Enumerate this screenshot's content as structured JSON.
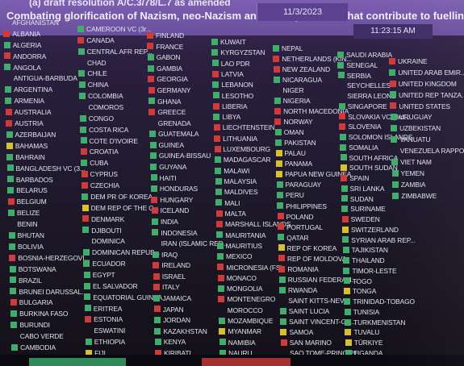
{
  "header": {
    "resolution": "(a) draft resolution A/C.3/78/L.7 as amended",
    "topic": "Combating glorification of Nazism, neo-Nazism and other practices that contribute to fuelling contemporary forms of",
    "date": "11/3/2023",
    "time": "11:23:15 AM"
  },
  "columns": [
    [
      {
        "name": "AFGHANISTAN",
        "vote": "none"
      },
      {
        "name": "ALBANIA",
        "vote": "no"
      },
      {
        "name": "ALGERIA",
        "vote": "yes"
      },
      {
        "name": "ANDORRA",
        "vote": "no"
      },
      {
        "name": "ANGOLA",
        "vote": "yes"
      },
      {
        "name": "ANTIGUA-BARBUDA",
        "vote": "none"
      },
      {
        "name": "ARGENTINA",
        "vote": "yes"
      },
      {
        "name": "ARMENIA",
        "vote": "yes"
      },
      {
        "name": "AUSTRALIA",
        "vote": "no"
      },
      {
        "name": "AUSTRIA",
        "vote": "no"
      },
      {
        "name": "AZERBAIJAN",
        "vote": "yes"
      },
      {
        "name": "BAHAMAS",
        "vote": "abs"
      },
      {
        "name": "BAHRAIN",
        "vote": "yes"
      },
      {
        "name": "BANGLADESH VC (3...",
        "vote": "yes"
      },
      {
        "name": "BARBADOS",
        "vote": "yes"
      },
      {
        "name": "BELARUS",
        "vote": "yes"
      },
      {
        "name": "BELGIUM",
        "vote": "no"
      },
      {
        "name": "BELIZE",
        "vote": "yes"
      },
      {
        "name": "BENIN",
        "vote": "none"
      },
      {
        "name": "BHUTAN",
        "vote": "yes"
      },
      {
        "name": "BOLIVIA",
        "vote": "yes"
      },
      {
        "name": "BOSNIA-HERZEGOVI...",
        "vote": "no"
      },
      {
        "name": "BOTSWANA",
        "vote": "yes"
      },
      {
        "name": "BRAZIL",
        "vote": "yes"
      },
      {
        "name": "BRUNEI DARUSSAL...",
        "vote": "yes"
      },
      {
        "name": "BULGARIA",
        "vote": "no"
      },
      {
        "name": "BURKINA FASO",
        "vote": "yes"
      },
      {
        "name": "BURUNDI",
        "vote": "yes"
      },
      {
        "name": "CABO VERDE",
        "vote": "none"
      },
      {
        "name": "CAMBODIA",
        "vote": "yes"
      }
    ],
    [
      {
        "name": "CAMEROON VC (3r...",
        "vote": "yes"
      },
      {
        "name": "CANADA",
        "vote": "no"
      },
      {
        "name": "CENTRAL AFR REP...",
        "vote": "yes"
      },
      {
        "name": "CHAD",
        "vote": "none"
      },
      {
        "name": "CHILE",
        "vote": "yes"
      },
      {
        "name": "CHINA",
        "vote": "yes"
      },
      {
        "name": "COLOMBIA",
        "vote": "yes"
      },
      {
        "name": "COMOROS",
        "vote": "none"
      },
      {
        "name": "CONGO",
        "vote": "yes"
      },
      {
        "name": "COSTA RICA",
        "vote": "yes"
      },
      {
        "name": "COTE D'IVOIRE",
        "vote": "yes"
      },
      {
        "name": "CROATIA",
        "vote": "no"
      },
      {
        "name": "CUBA",
        "vote": "yes"
      },
      {
        "name": "CYPRUS",
        "vote": "no"
      },
      {
        "name": "CZECHIA",
        "vote": "no"
      },
      {
        "name": "DEM PR OF KOREA",
        "vote": "yes"
      },
      {
        "name": "DEM REP OF THE C...",
        "vote": "abs"
      },
      {
        "name": "DENMARK",
        "vote": "no"
      },
      {
        "name": "DJIBOUTI",
        "vote": "yes"
      },
      {
        "name": "DOMINICA",
        "vote": "none"
      },
      {
        "name": "DOMINICAN REPUB...",
        "vote": "yes"
      },
      {
        "name": "ECUADOR",
        "vote": "yes"
      },
      {
        "name": "EGYPT",
        "vote": "yes"
      },
      {
        "name": "EL SALVADOR",
        "vote": "yes"
      },
      {
        "name": "EQUATORIAL GUINEA",
        "vote": "yes"
      },
      {
        "name": "ERITREA",
        "vote": "yes"
      },
      {
        "name": "ESTONIA",
        "vote": "no"
      },
      {
        "name": "ESWATINI",
        "vote": "none"
      },
      {
        "name": "ETHIOPIA",
        "vote": "yes"
      },
      {
        "name": "FIJI",
        "vote": "abs"
      }
    ],
    [
      {
        "name": "FINLAND",
        "vote": "no"
      },
      {
        "name": "FRANCE",
        "vote": "no"
      },
      {
        "name": "GABON",
        "vote": "yes"
      },
      {
        "name": "GAMBIA",
        "vote": "yes"
      },
      {
        "name": "GEORGIA",
        "vote": "no"
      },
      {
        "name": "GERMANY",
        "vote": "no"
      },
      {
        "name": "GHANA",
        "vote": "yes"
      },
      {
        "name": "GREECE",
        "vote": "no"
      },
      {
        "name": "GRENADA",
        "vote": "none"
      },
      {
        "name": "GUATEMALA",
        "vote": "yes"
      },
      {
        "name": "GUINEA",
        "vote": "yes"
      },
      {
        "name": "GUINEA-BISSAU",
        "vote": "yes"
      },
      {
        "name": "GUYANA",
        "vote": "yes"
      },
      {
        "name": "HAITI",
        "vote": "yes"
      },
      {
        "name": "HONDURAS",
        "vote": "yes"
      },
      {
        "name": "HUNGARY",
        "vote": "no"
      },
      {
        "name": "ICELAND",
        "vote": "no"
      },
      {
        "name": "INDIA",
        "vote": "yes"
      },
      {
        "name": "INDONESIA",
        "vote": "yes"
      },
      {
        "name": "IRAN (ISLAMIC REP...",
        "vote": "none"
      },
      {
        "name": "IRAQ",
        "vote": "yes"
      },
      {
        "name": "IRELAND",
        "vote": "no"
      },
      {
        "name": "ISRAEL",
        "vote": "no"
      },
      {
        "name": "ITALY",
        "vote": "no"
      },
      {
        "name": "JAMAICA",
        "vote": "yes"
      },
      {
        "name": "JAPAN",
        "vote": "no"
      },
      {
        "name": "JORDAN",
        "vote": "yes"
      },
      {
        "name": "KAZAKHSTAN",
        "vote": "yes"
      },
      {
        "name": "KENYA",
        "vote": "yes"
      },
      {
        "name": "KIRIBATI",
        "vote": "no"
      }
    ],
    [
      {
        "name": "KUWAIT",
        "vote": "yes"
      },
      {
        "name": "KYRGYZSTAN",
        "vote": "yes"
      },
      {
        "name": "LAO PDR",
        "vote": "yes"
      },
      {
        "name": "LATVIA",
        "vote": "no"
      },
      {
        "name": "LEBANON",
        "vote": "yes"
      },
      {
        "name": "LESOTHO",
        "vote": "yes"
      },
      {
        "name": "LIBERIA",
        "vote": "no"
      },
      {
        "name": "LIBYA",
        "vote": "yes"
      },
      {
        "name": "LIECHTENSTEIN",
        "vote": "no"
      },
      {
        "name": "LITHUANIA",
        "vote": "no"
      },
      {
        "name": "LUXEMBOURG",
        "vote": "no"
      },
      {
        "name": "MADAGASCAR",
        "vote": "yes"
      },
      {
        "name": "MALAWI",
        "vote": "yes"
      },
      {
        "name": "MALAYSIA",
        "vote": "yes"
      },
      {
        "name": "MALDIVES",
        "vote": "yes"
      },
      {
        "name": "MALI",
        "vote": "yes"
      },
      {
        "name": "MALTA",
        "vote": "no"
      },
      {
        "name": "MARSHALL ISLANDS",
        "vote": "no"
      },
      {
        "name": "MAURITANIA",
        "vote": "yes"
      },
      {
        "name": "MAURITIUS",
        "vote": "yes"
      },
      {
        "name": "MEXICO",
        "vote": "yes"
      },
      {
        "name": "MICRONESIA (FS)",
        "vote": "no"
      },
      {
        "name": "MONACO",
        "vote": "no"
      },
      {
        "name": "MONGOLIA",
        "vote": "yes"
      },
      {
        "name": "MONTENEGRO",
        "vote": "no"
      },
      {
        "name": "MOROCCO",
        "vote": "none"
      },
      {
        "name": "MOZAMBIQUE",
        "vote": "yes"
      },
      {
        "name": "MYANMAR",
        "vote": "abs"
      },
      {
        "name": "NAMIBIA",
        "vote": "yes"
      },
      {
        "name": "NAURU",
        "vote": "yes"
      }
    ],
    [
      {
        "name": "NEPAL",
        "vote": "yes"
      },
      {
        "name": "NETHERLANDS (KIN...",
        "vote": "no"
      },
      {
        "name": "NEW ZEALAND",
        "vote": "no"
      },
      {
        "name": "NICARAGUA",
        "vote": "yes"
      },
      {
        "name": "NIGER",
        "vote": "none"
      },
      {
        "name": "NIGERIA",
        "vote": "yes"
      },
      {
        "name": "NORTH MACEDONIA",
        "vote": "no"
      },
      {
        "name": "NORWAY",
        "vote": "no"
      },
      {
        "name": "OMAN",
        "vote": "yes"
      },
      {
        "name": "PAKISTAN",
        "vote": "yes"
      },
      {
        "name": "PALAU",
        "vote": "abs"
      },
      {
        "name": "PANAMA",
        "vote": "abs"
      },
      {
        "name": "PAPUA NEW GUINEA",
        "vote": "abs"
      },
      {
        "name": "PARAGUAY",
        "vote": "yes"
      },
      {
        "name": "PERU",
        "vote": "yes"
      },
      {
        "name": "PHILIPPINES",
        "vote": "yes"
      },
      {
        "name": "POLAND",
        "vote": "no"
      },
      {
        "name": "PORTUGAL",
        "vote": "no"
      },
      {
        "name": "QATAR",
        "vote": "yes"
      },
      {
        "name": "REP OF KOREA",
        "vote": "abs"
      },
      {
        "name": "REP OF MOLDOVA",
        "vote": "no"
      },
      {
        "name": "ROMANIA",
        "vote": "no"
      },
      {
        "name": "RUSSIAN FEDERATI...",
        "vote": "yes"
      },
      {
        "name": "RWANDA",
        "vote": "yes"
      },
      {
        "name": "SAINT KITTS-NEVIS",
        "vote": "none"
      },
      {
        "name": "SAINT LUCIA",
        "vote": "yes"
      },
      {
        "name": "SAINT VINCENT-GR...",
        "vote": "yes"
      },
      {
        "name": "SAMOA",
        "vote": "abs"
      },
      {
        "name": "SAN MARINO",
        "vote": "no"
      },
      {
        "name": "SAO TOME-PRINCIPE",
        "vote": "none"
      }
    ],
    [
      {
        "name": "SAUDI ARABIA",
        "vote": "yes"
      },
      {
        "name": "SENEGAL",
        "vote": "yes"
      },
      {
        "name": "SERBIA",
        "vote": "yes"
      },
      {
        "name": "SEYCHELLES",
        "vote": "none"
      },
      {
        "name": "SIERRA LEONE",
        "vote": "none"
      },
      {
        "name": "SINGAPORE",
        "vote": "yes"
      },
      {
        "name": "SLOVAKIA VC (3rd...",
        "vote": "no"
      },
      {
        "name": "SLOVENIA",
        "vote": "no"
      },
      {
        "name": "SOLOMON ISLANDS",
        "vote": "yes"
      },
      {
        "name": "SOMALIA",
        "vote": "yes"
      },
      {
        "name": "SOUTH AFRICA",
        "vote": "yes"
      },
      {
        "name": "SOUTH SUDAN",
        "vote": "abs"
      },
      {
        "name": "SPAIN",
        "vote": "no"
      },
      {
        "name": "SRI LANKA",
        "vote": "yes"
      },
      {
        "name": "SUDAN",
        "vote": "yes"
      },
      {
        "name": "SURINAME",
        "vote": "yes"
      },
      {
        "name": "SWEDEN",
        "vote": "no"
      },
      {
        "name": "SWITZERLAND",
        "vote": "abs"
      },
      {
        "name": "SYRIAN ARAB REP...",
        "vote": "yes"
      },
      {
        "name": "TAJIKISTAN",
        "vote": "yes"
      },
      {
        "name": "THAILAND",
        "vote": "yes"
      },
      {
        "name": "TIMOR-LESTE",
        "vote": "yes"
      },
      {
        "name": "TOGO",
        "vote": "yes"
      },
      {
        "name": "TONGA",
        "vote": "abs"
      },
      {
        "name": "TRINIDAD-TOBAGO",
        "vote": "yes"
      },
      {
        "name": "TUNISIA",
        "vote": "yes"
      },
      {
        "name": "TURKMENISTAN",
        "vote": "yes"
      },
      {
        "name": "TUVALU",
        "vote": "abs"
      },
      {
        "name": "TÜRKIYE",
        "vote": "abs"
      },
      {
        "name": "UGANDA",
        "vote": "yes"
      }
    ],
    [
      {
        "name": "UKRAINE",
        "vote": "no"
      },
      {
        "name": "UNITED ARAB EMIR...",
        "vote": "yes"
      },
      {
        "name": "UNITED KINGDOM",
        "vote": "no"
      },
      {
        "name": "UNITED REP TANZA...",
        "vote": "yes"
      },
      {
        "name": "UNITED STATES",
        "vote": "no"
      },
      {
        "name": "URUGUAY",
        "vote": "yes"
      },
      {
        "name": "UZBEKISTAN",
        "vote": "yes"
      },
      {
        "name": "VANUATU",
        "vote": "yes"
      },
      {
        "name": "VENEZUELA RAPPO...",
        "vote": "none"
      },
      {
        "name": "VIET NAM",
        "vote": "yes"
      },
      {
        "name": "YEMEN",
        "vote": "yes"
      },
      {
        "name": "ZAMBIA",
        "vote": "yes"
      },
      {
        "name": "ZIMBABWE",
        "vote": "yes"
      }
    ]
  ],
  "vote_colors": {
    "yes": "#3fae6a",
    "no": "#d23a3a",
    "abs": "#d6c12a"
  }
}
